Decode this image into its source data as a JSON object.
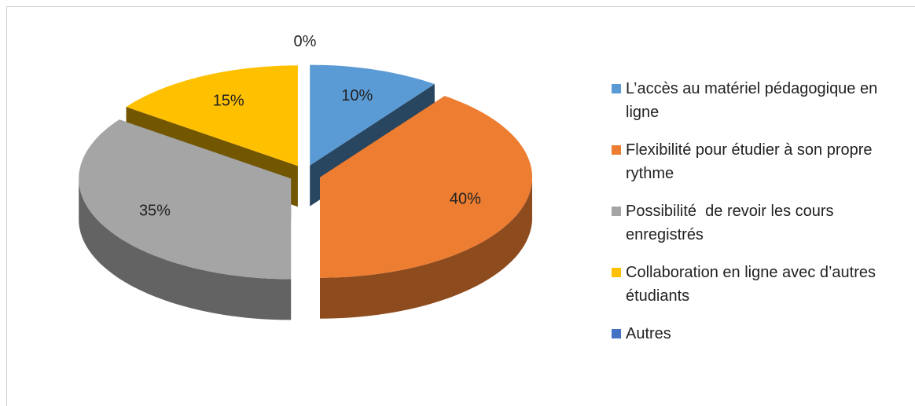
{
  "chart_data": {
    "type": "pie",
    "categories": [
      "L’accès au matériel pédagogique en ligne",
      "Flexibilité pour étudier à son propre rythme",
      "Possibilité  de revoir les cours enregistrés",
      "Collaboration en ligne avec d’autres étudiants",
      "Autres"
    ],
    "values": [
      10,
      40,
      35,
      15,
      0
    ],
    "value_labels": [
      "10%",
      "40%",
      "35%",
      "15%",
      "0%"
    ],
    "colors": [
      "#5b9bd5",
      "#ed7d31",
      "#a5a5a5",
      "#ffc000",
      "#4472c4"
    ],
    "legend": "right"
  }
}
